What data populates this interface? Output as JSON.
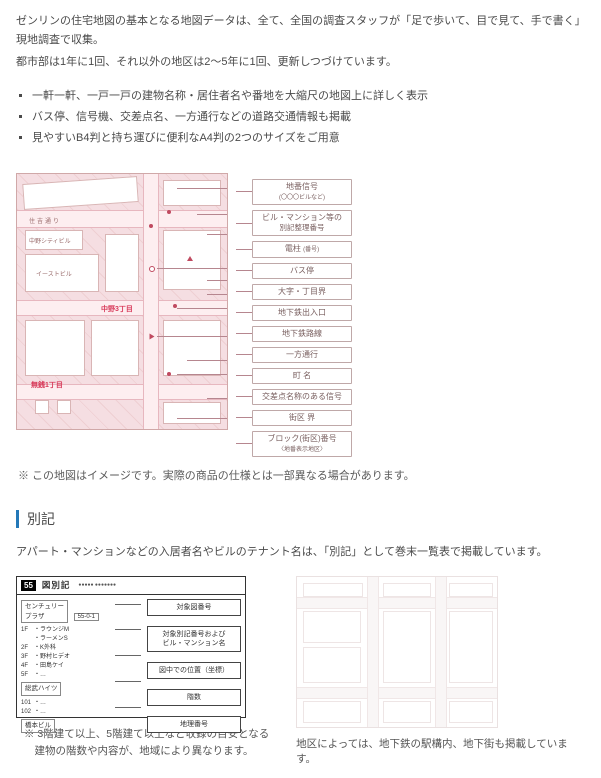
{
  "intro": {
    "p1": "ゼンリンの住宅地図の基本となる地図データは、全て、全国の調査スタッフが「足で歩いて、目で見て、手で書く」現地調査で収集。",
    "p2": "都市部は1年に1回、それ以外の地区は2～5年に1回、更新しつづけています。"
  },
  "features": [
    "一軒一軒、一戸一戸の建物名称・居住者名や番地を大縮尺の地図上に詳しく表示",
    "バス停、信号機、交差点名、一方通行などの道路交通情報も掲載",
    "見やすいB4判と持ち運びに便利なA4判の2つのサイズをご用意"
  ],
  "map": {
    "street_label": "住吉通り",
    "block1": "中野シティビル",
    "block2": "イーストビル",
    "area_red_1": "中野3丁目",
    "area_red_2": "無銭1丁目",
    "image_note": "※ この地図はイメージです。実際の商品の仕様とは一部異なる場合があります。"
  },
  "legend": [
    {
      "l1": "地番信号",
      "l2": "(〇〇〇ビルなど)"
    },
    {
      "l1": "ビル・マンション等の",
      "l2": "別記整理番号"
    },
    {
      "l1": "電柱",
      "l2": "(番号)"
    },
    {
      "l1": "バス停",
      "l2": ""
    },
    {
      "l1": "大字・丁目界",
      "l2": ""
    },
    {
      "l1": "地下鉄出入口",
      "l2": ""
    },
    {
      "l1": "地下鉄路線",
      "l2": ""
    },
    {
      "l1": "一方通行",
      "l2": ""
    },
    {
      "l1": "町 名",
      "l2": ""
    },
    {
      "l1": "交差点名称のある信号",
      "l2": ""
    },
    {
      "l1": "街区 界",
      "l2": ""
    },
    {
      "l1": "ブロック(街区)番号",
      "l2": "〈地番表示地区〉"
    }
  ],
  "section": {
    "title": "別記"
  },
  "bekki": {
    "lead": "アパート・マンションなどの入居者名やビルのテナント名は、「別記」として巻末一覧表で掲載しています。",
    "badge": "55",
    "header": "図別記",
    "header_sub": "●●●●●  ●●●●●●●",
    "group1": "センチュリー\nプラザ",
    "group2": "総武ハイツ",
    "group3": "橋本ビル",
    "entries_a": [
      [
        "1F",
        "・ラウンジM"
      ],
      [
        "",
        "・ラーメンS"
      ],
      [
        "2F",
        "・K外科"
      ],
      [
        "3F",
        "・野村ヒデオ"
      ],
      [
        "4F",
        "・田島ケイ"
      ],
      [
        "5F",
        "・…"
      ]
    ],
    "entries_b": [
      [
        "101",
        "・…"
      ],
      [
        "102",
        "・…"
      ]
    ],
    "meta_center": "55-0-1",
    "tags": [
      "対象図番号",
      "対象別記番号および\nビル・マンション名",
      "図中での位置（坐標）",
      "階数",
      "地理番号"
    ],
    "note": "※ 3階建て以上、5階建て以上など収録の目安となる建物の階数や内容が、地域により異なります。"
  },
  "pale": {
    "note": "地区によっては、地下鉄の駅構内、地下街も掲載しています。"
  },
  "colors": {
    "accent": "#d83a5a",
    "section_bar": "#2378b8",
    "line": "#b6868f"
  }
}
